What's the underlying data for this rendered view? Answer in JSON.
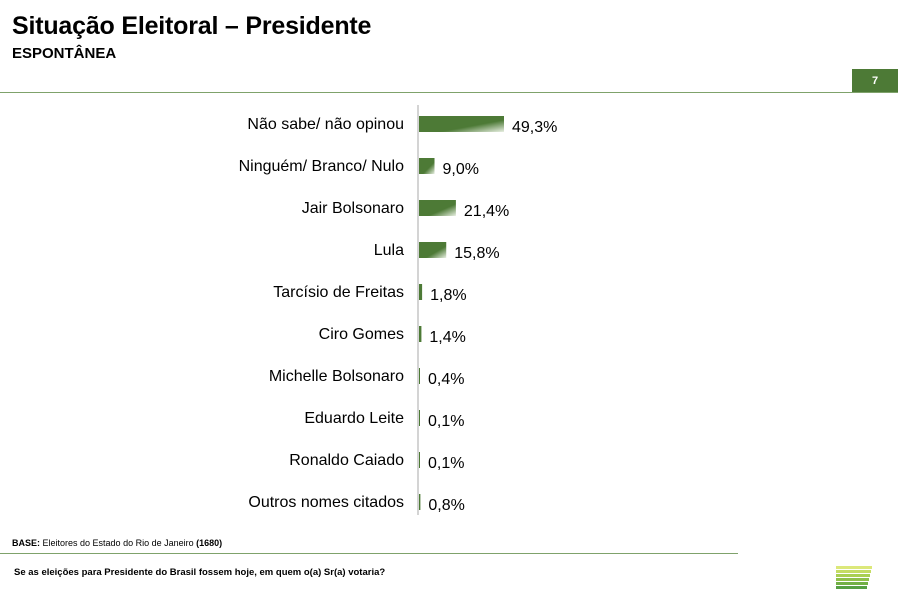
{
  "header": {
    "title": "Situação Eleitoral – Presidente",
    "subtitle": "ESPONTÂNEA",
    "page_number": "7"
  },
  "chart_data": {
    "type": "bar",
    "orientation": "horizontal",
    "categories": [
      "Não sabe/ não opinou",
      "Ninguém/ Branco/ Nulo",
      "Jair Bolsonaro",
      "Lula",
      "Tarcísio de Freitas",
      "Ciro Gomes",
      "Michelle Bolsonaro",
      "Eduardo Leite",
      "Ronaldo Caiado",
      "Outros nomes citados"
    ],
    "values": [
      49.3,
      9.0,
      21.4,
      15.8,
      1.8,
      1.4,
      0.4,
      0.1,
      0.1,
      0.8
    ],
    "data_labels": [
      "49,3%",
      "9,0%",
      "21,4%",
      "15,8%",
      "1,8%",
      "1,4%",
      "0,4%",
      "0,1%",
      "0,1%",
      "0,8%"
    ],
    "xlim": [
      0,
      100
    ],
    "bar_color": "#4d7a36",
    "bar_highlight_color": "#e9f0e3",
    "title": "",
    "xlabel": "",
    "ylabel": ""
  },
  "footer": {
    "base_label": "BASE:",
    "base_text": " Eleitores do Estado do Rio de Janeiro ",
    "base_count": "(1680)",
    "question": "Se as eleições para Presidente do Brasil fossem hoje, em quem o(a) Sr(a) votaria?"
  },
  "logo": {
    "stripe_colors": [
      "#dce87a",
      "#c4dc63",
      "#a9cf52",
      "#8fc04a",
      "#72b045",
      "#56a043"
    ]
  }
}
